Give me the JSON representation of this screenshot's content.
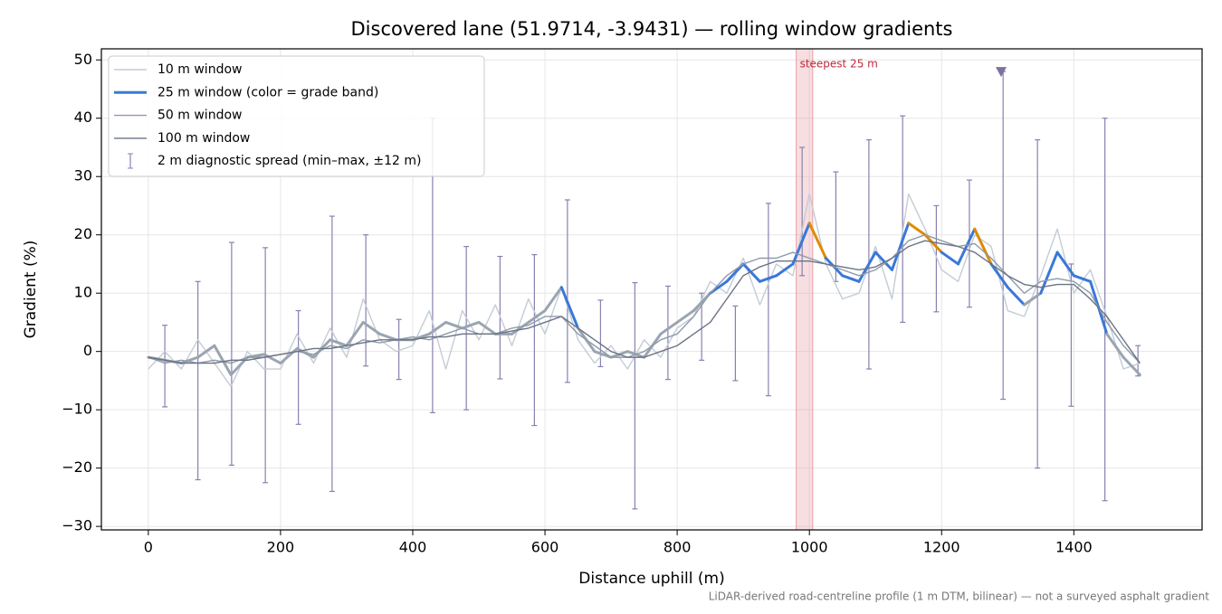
{
  "chart_data": {
    "type": "line",
    "title": "Discovered lane (51.9714, -3.9431) — rolling window gradients",
    "x_label": "Distance uphill (m)",
    "y_label": "Gradient (%)",
    "footnote": "LiDAR-derived road-centreline profile (1 m DTM, bilinear) — not a surveyed asphalt gradient",
    "xlim": [
      -71,
      1594
    ],
    "ylim": [
      -30.6,
      51.9
    ],
    "xticks": [
      0,
      200,
      400,
      600,
      800,
      1000,
      1200,
      1400
    ],
    "yticks": [
      {
        "value": -30,
        "label": "−30"
      },
      {
        "value": -20,
        "label": "−20"
      },
      {
        "value": -10,
        "label": "−10"
      },
      0,
      10,
      20,
      30,
      40,
      50
    ],
    "grid": true,
    "legend": "upper left",
    "x": [
      0,
      25,
      50,
      75,
      100,
      125,
      150,
      175,
      200,
      225,
      250,
      275,
      300,
      325,
      350,
      375,
      400,
      425,
      450,
      475,
      500,
      525,
      550,
      575,
      600,
      625,
      650,
      675,
      700,
      725,
      750,
      775,
      800,
      825,
      850,
      875,
      900,
      925,
      950,
      975,
      1000,
      1025,
      1050,
      1075,
      1100,
      1125,
      1150,
      1175,
      1200,
      1225,
      1250,
      1275,
      1300,
      1325,
      1350,
      1375,
      1400,
      1425,
      1450,
      1475,
      1500
    ],
    "series": [
      {
        "name": "10 m window",
        "color": "#c3ccd6",
        "width": 1.4,
        "values": [
          -3,
          0,
          -3,
          2,
          -2,
          -6,
          0,
          -3,
          -3,
          3,
          -2,
          4,
          -1,
          9,
          2,
          0,
          1,
          7,
          -3,
          7,
          2,
          8,
          1,
          9,
          3,
          11,
          2,
          -2,
          1,
          -3,
          2,
          -1,
          4,
          6,
          12,
          10,
          16,
          8,
          15,
          13,
          27,
          15,
          9,
          10,
          18,
          9,
          27,
          21,
          14,
          12,
          20,
          18,
          7,
          6,
          13,
          21,
          10,
          14,
          6,
          -3,
          -2
        ]
      },
      {
        "name": "25 m window (color = grade band)",
        "color": "#3a78d8",
        "width": 3,
        "values": [
          -1,
          -1.5,
          -2,
          -1,
          1,
          -4,
          -1,
          -0.5,
          -2,
          0.5,
          -1,
          2,
          1,
          5,
          3,
          2,
          2,
          3,
          5,
          4,
          5,
          3,
          3,
          5,
          7,
          11,
          4,
          0,
          -1,
          0,
          -1,
          3,
          5,
          7,
          10,
          12,
          15,
          12,
          13,
          15,
          22,
          16,
          13,
          12,
          17,
          14,
          22,
          20,
          17,
          15,
          21,
          15,
          11,
          8,
          10,
          17,
          13,
          12,
          3,
          -1,
          -4
        ],
        "colors": [
          "#9aa5b1",
          "#9aa5b1",
          "#9aa5b1",
          "#9aa5b1",
          "#9aa5b1",
          "#9aa5b1",
          "#9aa5b1",
          "#9aa5b1",
          "#9aa5b1",
          "#9aa5b1",
          "#9aa5b1",
          "#9aa5b1",
          "#9aa5b1",
          "#9aa5b1",
          "#9aa5b1",
          "#9aa5b1",
          "#9aa5b1",
          "#9aa5b1",
          "#9aa5b1",
          "#9aa5b1",
          "#9aa5b1",
          "#9aa5b1",
          "#9aa5b1",
          "#9aa5b1",
          "#9aa5b1",
          "#3a78d8",
          "#9aa5b1",
          "#9aa5b1",
          "#9aa5b1",
          "#9aa5b1",
          "#9aa5b1",
          "#9aa5b1",
          "#9aa5b1",
          "#9aa5b1",
          "#3a78d8",
          "#3a78d8",
          "#3a78d8",
          "#3a78d8",
          "#3a78d8",
          "#3a78d8",
          "#e08a00",
          "#3a78d8",
          "#3a78d8",
          "#3a78d8",
          "#3a78d8",
          "#3a78d8",
          "#e08a00",
          "#e08a00",
          "#3a78d8",
          "#3a78d8",
          "#e08a00",
          "#3a78d8",
          "#3a78d8",
          "#9aa5b1",
          "#3a78d8",
          "#3a78d8",
          "#3a78d8",
          "#3a78d8",
          "#9aa5b1",
          "#9aa5b1",
          "#9aa5b1"
        ]
      },
      {
        "name": "50 m window",
        "color": "#8e9aab",
        "width": 1.4,
        "values": [
          -1,
          -2,
          -1.5,
          -2,
          -1.5,
          -2,
          -1,
          -1,
          -0.5,
          0,
          -0.5,
          1,
          0.5,
          2,
          1.5,
          2,
          2.5,
          2,
          3,
          4,
          3,
          3,
          4,
          4.5,
          6,
          6,
          3,
          1,
          -1,
          -1,
          0,
          2,
          3,
          6,
          10,
          13,
          15,
          16,
          16,
          17,
          16,
          15,
          14,
          13,
          14,
          16,
          19,
          20,
          19,
          18,
          18.5,
          16,
          13,
          10,
          12,
          12.5,
          12,
          10,
          5,
          1,
          -2
        ]
      },
      {
        "name": "100 m window",
        "color": "#6b7385",
        "width": 1.4,
        "values": [
          -1,
          -1.5,
          -2,
          -2,
          -2,
          -1.5,
          -1.5,
          -1,
          -0.5,
          0,
          0.5,
          0.5,
          1,
          1.5,
          2,
          2,
          2,
          2.5,
          2.5,
          3,
          3,
          3,
          3.5,
          4,
          5,
          6,
          4,
          2,
          0,
          -1,
          -1,
          0,
          1,
          3,
          5,
          9,
          13,
          14.5,
          15.5,
          15.5,
          15.5,
          15,
          14.5,
          14,
          14.5,
          16,
          18,
          19,
          18.5,
          18,
          17,
          15,
          13,
          11.5,
          11,
          11.5,
          11.5,
          9,
          6,
          2,
          -2
        ]
      }
    ],
    "errorbars": {
      "name": "2 m diagnostic spread (min–max, ±12 m)",
      "color": "#8a80b0",
      "x": [
        25,
        75,
        126,
        177,
        227,
        278,
        329,
        379,
        430,
        481,
        532,
        584,
        634,
        684,
        736,
        786,
        837,
        888,
        938,
        989,
        1040,
        1090,
        1141,
        1192,
        1242,
        1293,
        1345,
        1396,
        1447,
        1497
      ],
      "low": [
        -9.5,
        -22,
        -19.5,
        -22.5,
        -12.5,
        -24,
        -2.5,
        -4.8,
        -10.5,
        -10,
        -4.7,
        -12.7,
        -5.3,
        -2.6,
        -27,
        -4.8,
        -1.5,
        -5,
        -7.6,
        13,
        12,
        -3,
        5,
        6.8,
        7.6,
        -8.2,
        -20,
        -9.4,
        -25.6,
        -4.2
      ],
      "high": [
        4.5,
        12,
        18.7,
        17.8,
        7,
        23.2,
        20,
        5.5,
        40,
        18,
        16.3,
        16.6,
        26,
        8.8,
        11.8,
        11.2,
        10,
        7.8,
        25.4,
        35,
        30.8,
        36.3,
        40.4,
        25,
        29.4,
        48,
        36.3,
        15,
        40,
        1
      ]
    },
    "highlight": {
      "label": "steepest 25 m",
      "x": [
        980,
        1005
      ],
      "color": "#e8a0a8"
    },
    "marker": {
      "x": 1290,
      "y": 48,
      "color": "#8070a0"
    }
  }
}
